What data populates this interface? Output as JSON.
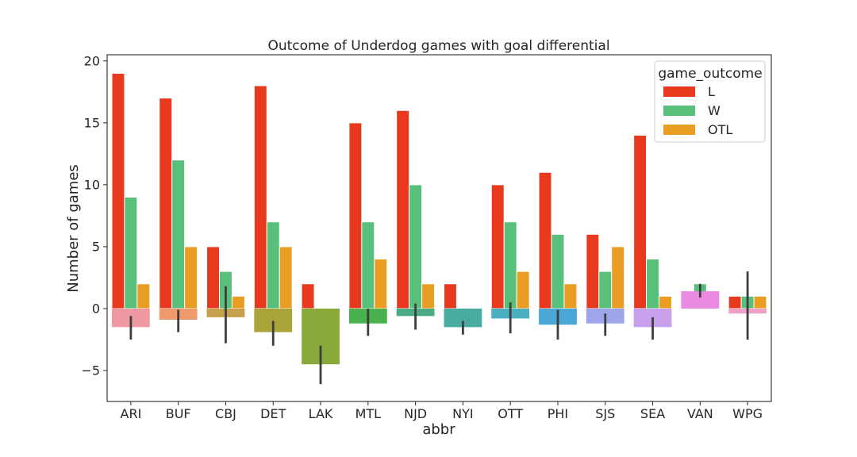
{
  "chart_data": {
    "type": "bar",
    "title": "Outcome of Underdog games with goal differential",
    "xlabel": "abbr",
    "ylabel": "Number of games",
    "ylim": [
      -7.5,
      20.5
    ],
    "yticks": [
      -5,
      0,
      5,
      10,
      15,
      20
    ],
    "categories": [
      "ARI",
      "BUF",
      "CBJ",
      "DET",
      "LAK",
      "MTL",
      "NJD",
      "NYI",
      "OTT",
      "PHI",
      "SJS",
      "SEA",
      "VAN",
      "WPG"
    ],
    "legend": {
      "title": "game_outcome",
      "position": "upper right"
    },
    "grid": false,
    "series": [
      {
        "name": "L",
        "color": "#e8391f",
        "values": [
          19,
          17,
          5,
          18,
          2,
          15,
          16,
          2,
          10,
          11,
          6,
          14,
          null,
          1
        ]
      },
      {
        "name": "W",
        "color": "#58c07a",
        "values": [
          9,
          12,
          3,
          7,
          null,
          7,
          10,
          null,
          7,
          6,
          3,
          4,
          2,
          1
        ]
      },
      {
        "name": "OTL",
        "color": "#e99d22",
        "values": [
          2,
          5,
          1,
          5,
          null,
          4,
          2,
          null,
          3,
          2,
          5,
          1,
          null,
          1
        ]
      }
    ],
    "goal_differential": {
      "means": [
        -1.5,
        -0.9,
        -0.7,
        -1.9,
        -4.5,
        -1.2,
        -0.6,
        -1.5,
        -0.8,
        -1.3,
        -1.2,
        -1.5,
        1.4,
        -0.4
      ],
      "ci_low": [
        -2.5,
        -1.9,
        -2.8,
        -3.0,
        -6.1,
        -2.2,
        -1.7,
        -2.1,
        -2.0,
        -2.5,
        -2.2,
        -2.5,
        0.9,
        -2.5
      ],
      "ci_high": [
        -0.6,
        -0.1,
        1.8,
        -1.0,
        -3.0,
        0.0,
        0.4,
        -1.0,
        0.5,
        -0.1,
        -0.4,
        -0.7,
        2.0,
        3.0
      ],
      "colors": [
        "#ef9aa2",
        "#ee9a6c",
        "#c6a04a",
        "#a8a43a",
        "#8aa93b",
        "#4ab14f",
        "#4aac82",
        "#48aca0",
        "#4ab0bf",
        "#4aa8d8",
        "#9fa5ea",
        "#c8a0ec",
        "#ea8ae0",
        "#f0a2c6"
      ]
    }
  }
}
